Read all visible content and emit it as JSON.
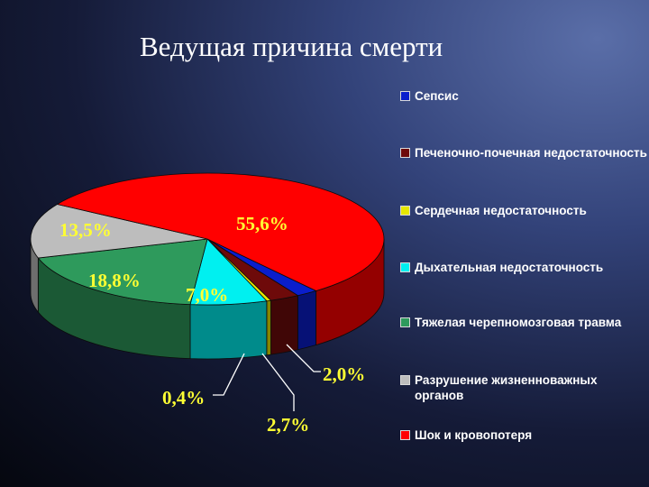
{
  "title": "Ведущая причина смерти",
  "chart_data": {
    "type": "pie",
    "title": "Ведущая причина смерти",
    "legend_position": "right",
    "series": [
      {
        "name": "Сепсис",
        "value": 2.0,
        "label": "2,0%",
        "color": "#0a1ecc"
      },
      {
        "name": "Печеночно-почечная недостаточность",
        "value": 2.7,
        "label": "2,7%",
        "color": "#6e0a0a"
      },
      {
        "name": "Сердечная недостаточность",
        "value": 0.4,
        "label": "0,4%",
        "color": "#e6e600"
      },
      {
        "name": "Дыхательная недостаточность",
        "value": 7.0,
        "label": "7,0%",
        "color": "#00f0f0"
      },
      {
        "name": "Тяжелая черепномозговая травма",
        "value": 18.8,
        "label": "18,8%",
        "color": "#2e9a5c"
      },
      {
        "name": "Разрушение жизненноважных органов",
        "value": 13.5,
        "label": "13,5%",
        "color": "#bdbdbd"
      },
      {
        "name": "Шок и кровопотеря",
        "value": 55.6,
        "label": "55,6%",
        "color": "#ff0000"
      }
    ]
  }
}
